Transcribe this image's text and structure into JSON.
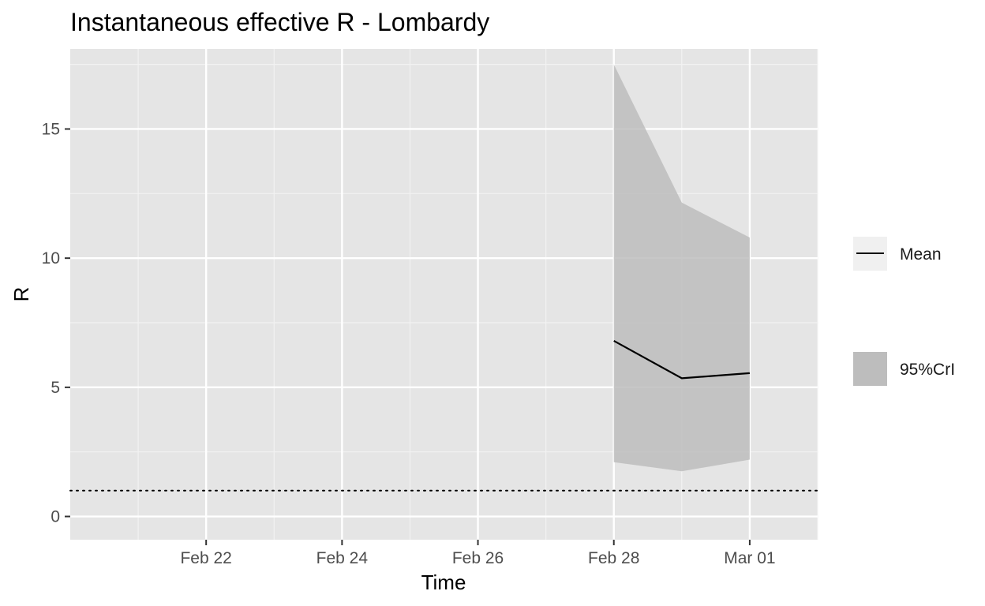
{
  "chart_data": {
    "type": "line",
    "title": "Instantaneous effective R -  Lombardy",
    "xlabel": "Time",
    "ylabel": "R",
    "x_ticks": [
      "Feb 22",
      "Feb 24",
      "Feb 26",
      "Feb 28",
      "Mar 01"
    ],
    "x_tick_dates": [
      "2020-02-22",
      "2020-02-24",
      "2020-02-26",
      "2020-02-28",
      "2020-03-01"
    ],
    "xlim": [
      "2020-02-20",
      "2020-03-02"
    ],
    "y_ticks": [
      "0",
      "5",
      "10",
      "15"
    ],
    "ylim": [
      -0.9,
      18.1
    ],
    "grid": true,
    "legend_position": "right",
    "series": [
      {
        "name": "Mean",
        "type": "line",
        "color": "#000000",
        "x": [
          "2020-02-28",
          "2020-02-29",
          "2020-03-01"
        ],
        "y": [
          6.8,
          5.35,
          5.55
        ]
      },
      {
        "name": "95%CrI",
        "type": "area",
        "color": "#bdbdbd",
        "x": [
          "2020-02-28",
          "2020-02-29",
          "2020-03-01"
        ],
        "lower": [
          2.1,
          1.75,
          2.2
        ],
        "upper": [
          17.5,
          12.15,
          10.8
        ]
      }
    ],
    "reference_line": {
      "y": 1,
      "style": "dotted",
      "color": "#000000"
    }
  }
}
